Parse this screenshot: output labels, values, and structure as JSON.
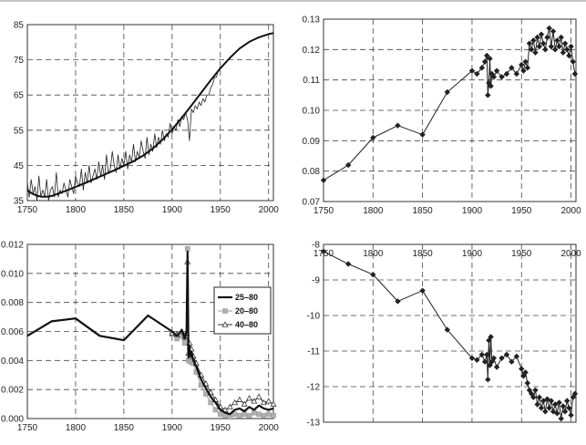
{
  "chart_data": [
    {
      "id": "top-left",
      "type": "line",
      "xlim": [
        1750,
        2005
      ],
      "ylim": [
        35,
        85
      ],
      "x_ticks": [
        1750,
        1800,
        1850,
        1900,
        1950,
        2000
      ],
      "y_ticks": [
        35,
        45,
        55,
        65,
        75,
        85
      ],
      "y_decimals": 0,
      "grid": true,
      "series": [
        {
          "style": "noisy",
          "color": "#222222",
          "x": [
            1750,
            1752,
            1754,
            1756,
            1758,
            1760,
            1762,
            1764,
            1766,
            1768,
            1770,
            1772,
            1774,
            1776,
            1778,
            1780,
            1782,
            1784,
            1786,
            1788,
            1790,
            1792,
            1794,
            1796,
            1798,
            1800,
            1802,
            1804,
            1806,
            1808,
            1810,
            1812,
            1814,
            1816,
            1818,
            1820,
            1822,
            1824,
            1826,
            1828,
            1830,
            1832,
            1834,
            1836,
            1838,
            1840,
            1842,
            1844,
            1846,
            1848,
            1850,
            1852,
            1854,
            1856,
            1858,
            1860,
            1862,
            1864,
            1866,
            1868,
            1870,
            1872,
            1874,
            1876,
            1878,
            1880,
            1882,
            1884,
            1886,
            1888,
            1890,
            1892,
            1894,
            1896,
            1898,
            1900,
            1902,
            1904,
            1906,
            1908,
            1910,
            1912,
            1914,
            1916,
            1918,
            1920,
            1922,
            1924,
            1926,
            1928,
            1930,
            1932,
            1934,
            1936,
            1938,
            1940,
            1942,
            1944,
            1946,
            1948,
            1950
          ],
          "y": [
            40,
            36,
            41,
            37,
            39,
            35,
            42,
            36,
            38,
            36,
            41,
            35,
            38,
            39,
            36,
            43,
            36,
            38,
            37,
            40,
            38,
            36,
            41,
            39,
            37,
            42,
            40,
            39,
            44,
            38,
            43,
            40,
            45,
            40,
            42,
            44,
            41,
            46,
            42,
            45,
            41,
            48,
            43,
            44,
            49,
            45,
            43,
            48,
            44,
            47,
            45,
            49,
            44,
            48,
            46,
            51,
            46,
            49,
            47,
            52,
            49,
            47,
            53,
            48,
            51,
            49,
            54,
            50,
            53,
            51,
            55,
            52,
            54,
            53,
            57,
            54,
            56,
            55,
            58,
            56,
            59,
            58,
            60,
            58,
            52,
            61,
            60,
            62,
            61,
            63,
            62,
            64,
            63,
            65,
            65,
            67,
            68,
            70,
            70,
            72,
            73
          ]
        },
        {
          "style": "smooth",
          "color": "#111111",
          "x": [
            1750,
            1755,
            1760,
            1765,
            1770,
            1775,
            1780,
            1790,
            1800,
            1810,
            1820,
            1830,
            1840,
            1850,
            1860,
            1870,
            1880,
            1890,
            1900,
            1910,
            1920,
            1930,
            1940,
            1950,
            1960,
            1970,
            1980,
            1990,
            2000,
            2005
          ],
          "y": [
            38,
            37,
            36.4,
            36.1,
            36.1,
            36.3,
            36.8,
            37.8,
            38.9,
            40,
            41.2,
            42.4,
            43.6,
            44.9,
            46.2,
            47.8,
            49.8,
            52.3,
            55.2,
            58.5,
            62,
            65.6,
            69.2,
            72.6,
            75.6,
            78.2,
            80.1,
            81.4,
            82.3,
            82.6
          ]
        }
      ]
    },
    {
      "id": "top-right",
      "type": "line",
      "xlim": [
        1750,
        2005
      ],
      "ylim": [
        0.07,
        0.13
      ],
      "x_ticks": [
        1750,
        1800,
        1850,
        1900,
        1950,
        2000
      ],
      "y_ticks": [
        0.07,
        0.08,
        0.09,
        0.1,
        0.11,
        0.12,
        0.13
      ],
      "y_decimals": 2,
      "grid": true,
      "series": [
        {
          "style": "marker-diamond",
          "color": "#222222",
          "x": [
            1750,
            1775,
            1800,
            1825,
            1850,
            1875,
            1900,
            1905,
            1910,
            1913,
            1915,
            1916,
            1917,
            1918,
            1919,
            1920,
            1922,
            1925,
            1930,
            1935,
            1940,
            1945,
            1950,
            1952,
            1954,
            1956,
            1958,
            1960,
            1962,
            1964,
            1966,
            1968,
            1970,
            1972,
            1974,
            1976,
            1978,
            1980,
            1982,
            1984,
            1986,
            1988,
            1990,
            1992,
            1994,
            1996,
            1998,
            2000,
            2002,
            2004
          ],
          "y": [
            0.077,
            0.082,
            0.091,
            0.095,
            0.092,
            0.106,
            0.113,
            0.112,
            0.114,
            0.116,
            0.118,
            0.105,
            0.109,
            0.117,
            0.108,
            0.112,
            0.111,
            0.113,
            0.111,
            0.112,
            0.114,
            0.112,
            0.115,
            0.113,
            0.116,
            0.114,
            0.122,
            0.12,
            0.123,
            0.119,
            0.124,
            0.121,
            0.125,
            0.122,
            0.12,
            0.124,
            0.127,
            0.121,
            0.126,
            0.12,
            0.123,
            0.121,
            0.124,
            0.119,
            0.122,
            0.12,
            0.118,
            0.121,
            0.116,
            0.112
          ]
        }
      ]
    },
    {
      "id": "bottom-left",
      "type": "line",
      "xlim": [
        1750,
        2005
      ],
      "ylim": [
        0,
        0.012
      ],
      "x_ticks": [
        1750,
        1800,
        1850,
        1900,
        1950,
        2000
      ],
      "y_ticks": [
        0,
        0.002,
        0.004,
        0.006,
        0.008,
        0.01,
        0.012
      ],
      "y_tick_labels": [
        "0.000",
        "0.002",
        "0.004",
        "0.006",
        "0.008",
        "0.010",
        "0.012"
      ],
      "y_decimals": 3,
      "grid": true,
      "legend": {
        "placement": "right",
        "entries": [
          {
            "name": "25–80",
            "style": "thick",
            "color": "#111111"
          },
          {
            "name": "20–80",
            "style": "square",
            "color": "#999999"
          },
          {
            "name": "40–80",
            "style": "triangle",
            "color": "#333333"
          }
        ]
      },
      "series": [
        {
          "name": "25–80",
          "style": "thick",
          "color": "#111111",
          "x": [
            1750,
            1775,
            1800,
            1825,
            1850,
            1875,
            1900,
            1905,
            1910,
            1913,
            1915,
            1916,
            1917,
            1918,
            1919,
            1920,
            1922,
            1925,
            1930,
            1935,
            1940,
            1945,
            1950,
            1955,
            1960,
            1965,
            1970,
            1975,
            1980,
            1985,
            1990,
            1995,
            2000,
            2005
          ],
          "y": [
            0.0057,
            0.0067,
            0.0069,
            0.0057,
            0.0054,
            0.0071,
            0.006,
            0.0057,
            0.0061,
            0.0055,
            0.006,
            0.0115,
            0.0042,
            0.005,
            0.0043,
            0.0046,
            0.004,
            0.0036,
            0.0027,
            0.0021,
            0.0015,
            0.0011,
            0.0006,
            0.0004,
            0.0003,
            0.0006,
            0.0007,
            0.0005,
            0.0008,
            0.0006,
            0.0009,
            0.0007,
            0.0006,
            0.0007
          ]
        },
        {
          "name": "20–80",
          "style": "square",
          "color": "#999999",
          "x": [
            1900,
            1905,
            1910,
            1913,
            1915,
            1916,
            1917,
            1918,
            1919,
            1920,
            1922,
            1925,
            1930,
            1935,
            1940,
            1945,
            1950,
            1955,
            1960,
            1965,
            1970,
            1975,
            1980,
            1985,
            1990,
            1995,
            2000,
            2005
          ],
          "y": [
            0.0058,
            0.0055,
            0.0057,
            0.0052,
            0.0056,
            0.0117,
            0.004,
            0.0048,
            0.0039,
            0.0042,
            0.0038,
            0.0032,
            0.0023,
            0.0017,
            0.0011,
            0.0006,
            0.0003,
            0.0002,
            0.0001,
            0.0003,
            0.0002,
            0.0003,
            0.0002,
            0.0004,
            0.0003,
            0.0002,
            0.0003,
            0.0002
          ]
        },
        {
          "name": "40–80",
          "style": "triangle",
          "color": "#333333",
          "x": [
            1900,
            1905,
            1910,
            1913,
            1915,
            1916,
            1917,
            1918,
            1919,
            1920,
            1922,
            1925,
            1930,
            1935,
            1940,
            1945,
            1950,
            1955,
            1960,
            1965,
            1970,
            1975,
            1980,
            1985,
            1990,
            1995,
            2000,
            2005
          ],
          "y": [
            0.0059,
            0.0058,
            0.006,
            0.0056,
            0.0059,
            0.0108,
            0.0045,
            0.0052,
            0.0046,
            0.0048,
            0.0043,
            0.0038,
            0.003,
            0.0024,
            0.0018,
            0.0013,
            0.0008,
            0.0006,
            0.0008,
            0.0011,
            0.0013,
            0.001,
            0.0014,
            0.0012,
            0.0015,
            0.0011,
            0.0012,
            0.001
          ]
        }
      ]
    },
    {
      "id": "bottom-right",
      "type": "line",
      "xlim": [
        1750,
        2005
      ],
      "ylim": [
        -13,
        -8
      ],
      "x_ticks": [
        1750,
        1800,
        1850,
        1900,
        1950,
        2000
      ],
      "y_ticks": [
        -13,
        -12,
        -11,
        -10,
        -9,
        -8
      ],
      "y_decimals": 0,
      "x_axis_position": "top",
      "grid": true,
      "series": [
        {
          "style": "marker-diamond",
          "color": "#222222",
          "x": [
            1750,
            1775,
            1800,
            1825,
            1850,
            1875,
            1900,
            1905,
            1910,
            1913,
            1915,
            1916,
            1917,
            1918,
            1919,
            1920,
            1922,
            1925,
            1930,
            1935,
            1940,
            1945,
            1950,
            1952,
            1954,
            1956,
            1958,
            1960,
            1962,
            1964,
            1966,
            1968,
            1970,
            1972,
            1974,
            1976,
            1978,
            1980,
            1982,
            1984,
            1986,
            1988,
            1990,
            1992,
            1994,
            1996,
            1998,
            2000,
            2002,
            2004
          ],
          "y": [
            -8.2,
            -8.55,
            -8.85,
            -9.6,
            -9.3,
            -10.4,
            -11.2,
            -11.25,
            -11.1,
            -11.3,
            -11.1,
            -11.8,
            -10.7,
            -11.4,
            -10.6,
            -11.3,
            -11.2,
            -11.45,
            -11.2,
            -11.1,
            -11.3,
            -11.15,
            -11.5,
            -11.7,
            -11.6,
            -11.9,
            -12.1,
            -12.2,
            -12.3,
            -12.1,
            -12.5,
            -12.3,
            -12.6,
            -12.4,
            -12.7,
            -12.35,
            -12.6,
            -12.4,
            -12.7,
            -12.5,
            -12.75,
            -12.45,
            -12.9,
            -12.55,
            -12.7,
            -12.4,
            -12.6,
            -12.8,
            -12.3,
            -12.2
          ]
        }
      ]
    }
  ]
}
